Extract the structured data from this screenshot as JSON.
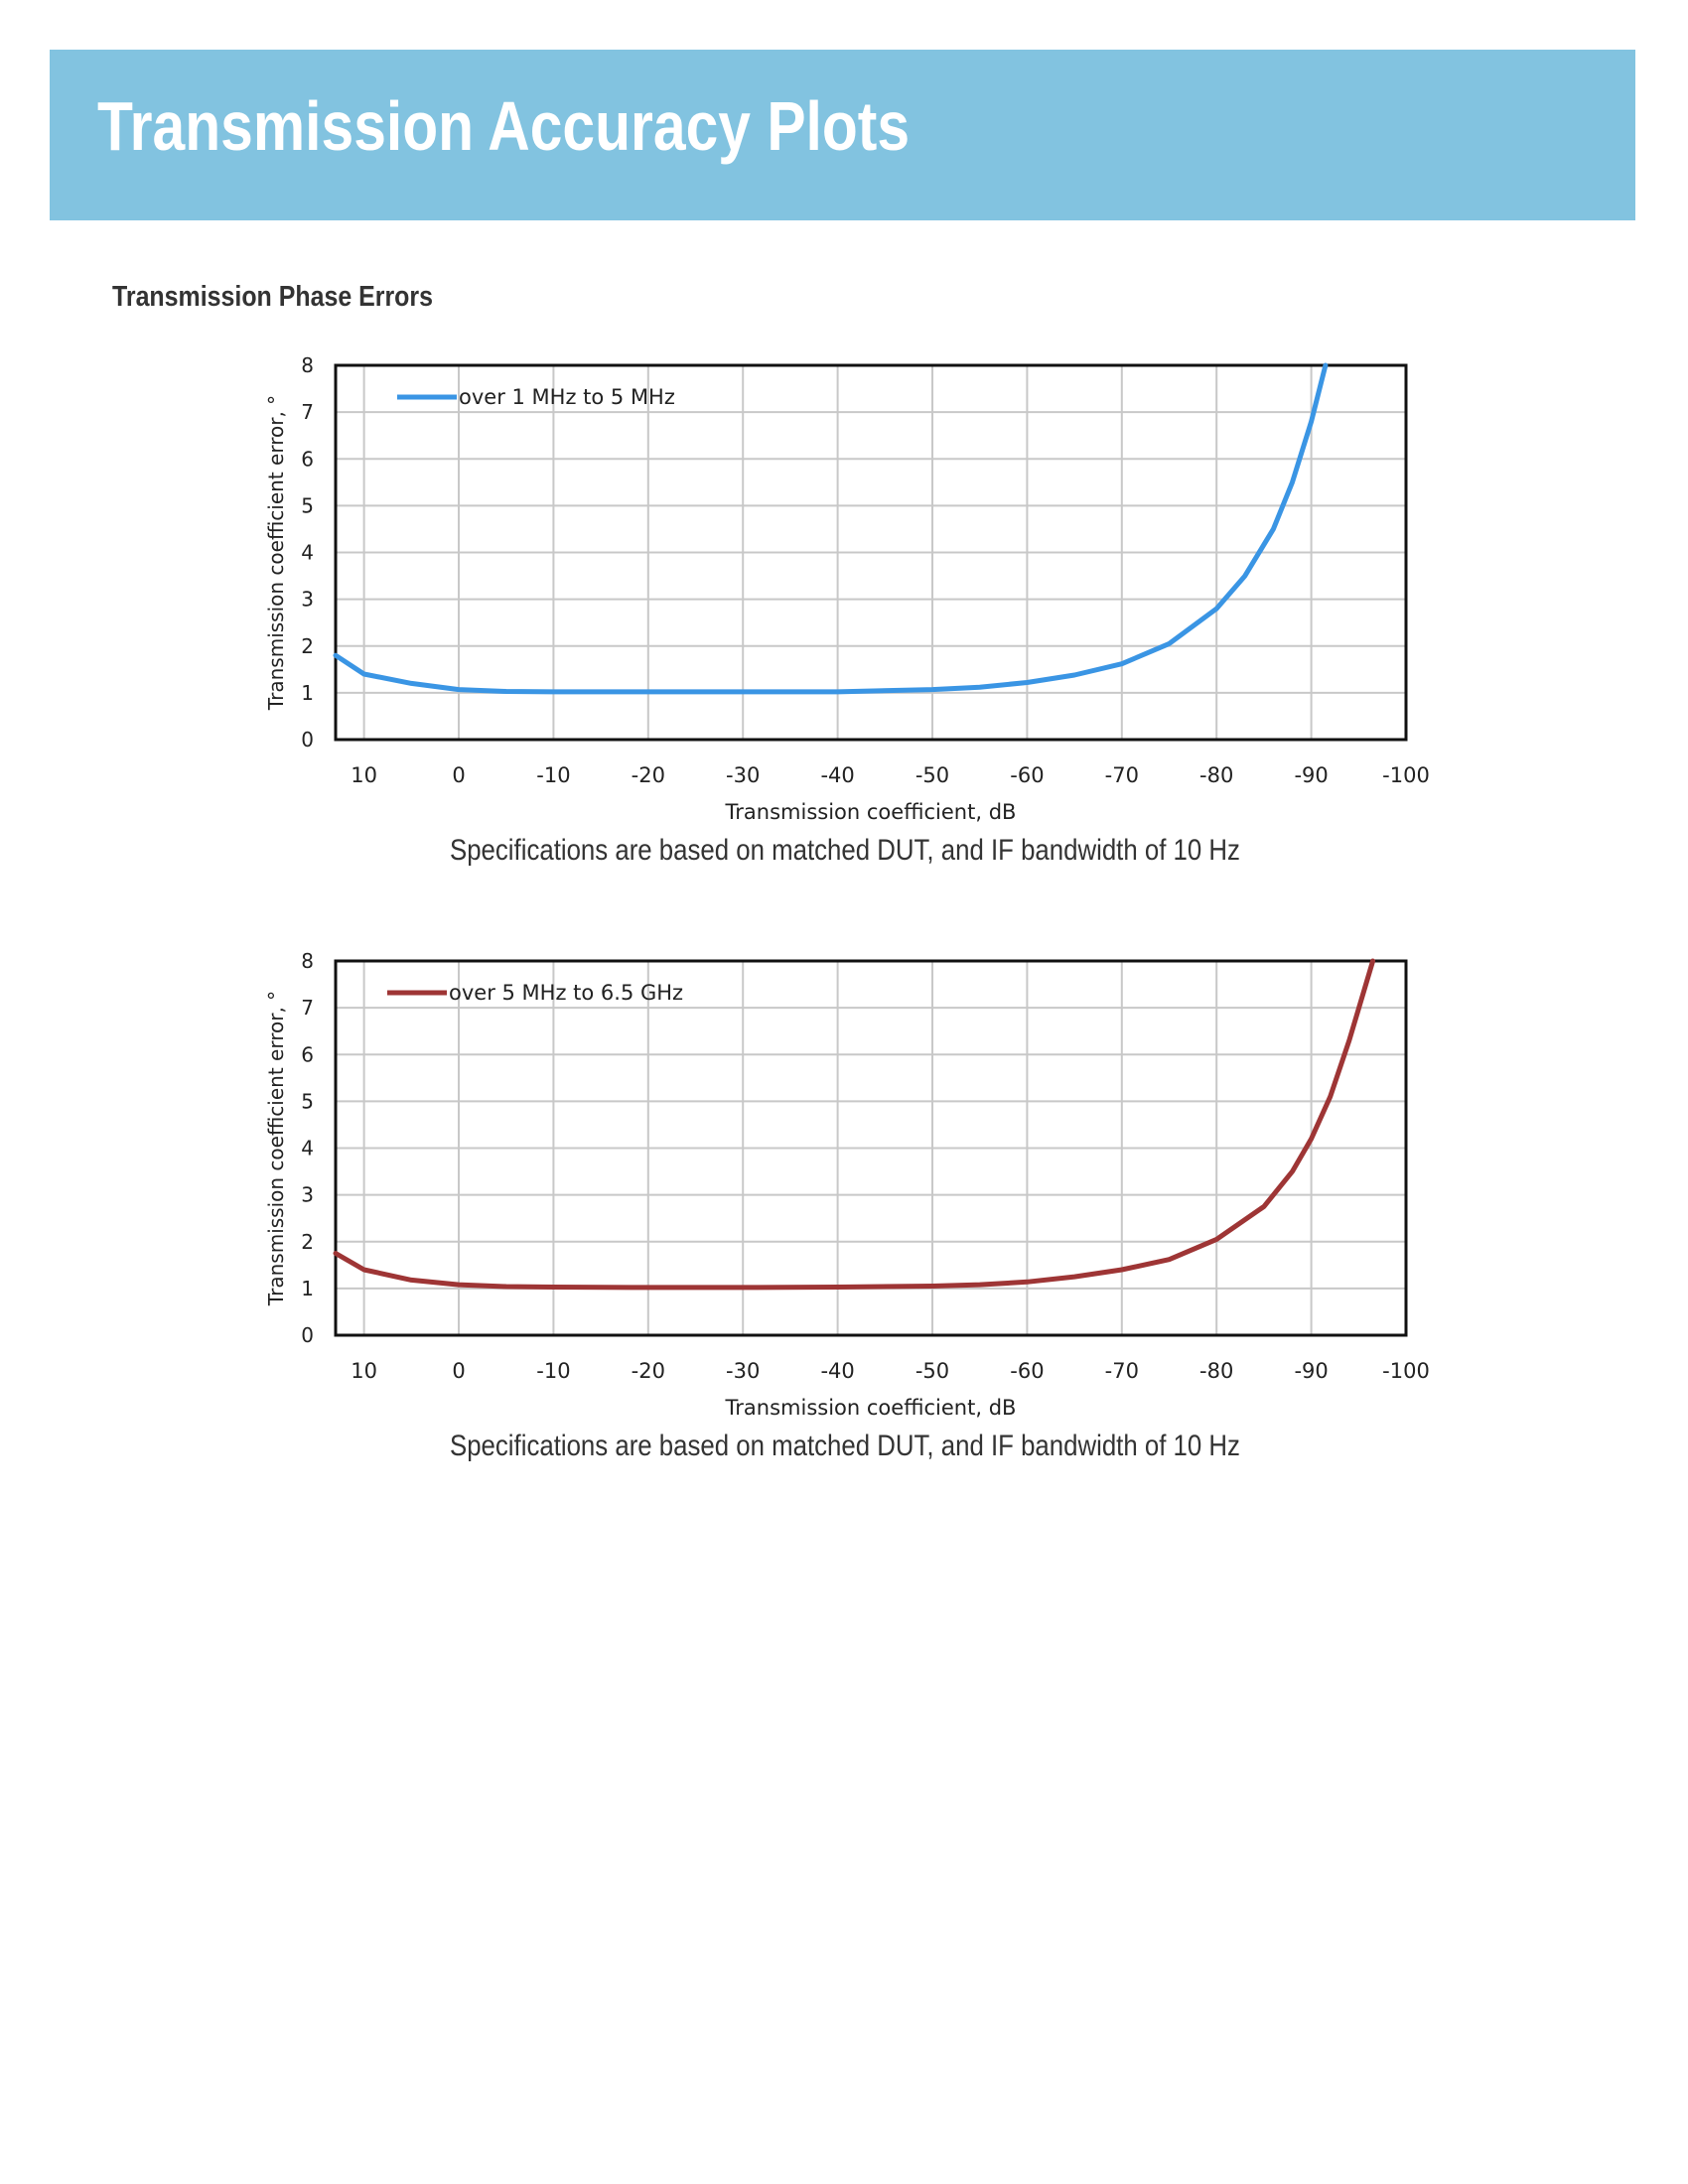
{
  "header": {
    "title": "Transmission Accuracy Plots",
    "background_color": "#82c3e0"
  },
  "section_title": "Transmission Phase Errors",
  "chart_data": [
    {
      "type": "line",
      "xlabel": "Transmission coefficient, dB",
      "ylabel": "Transmission coefficient error, °",
      "xlim": [
        13,
        -100
      ],
      "ylim": [
        0,
        8
      ],
      "x_ticks": [
        "10",
        "0",
        "-10",
        "-20",
        "-30",
        "-40",
        "-50",
        "-60",
        "-70",
        "-80",
        "-90",
        "-100"
      ],
      "y_ticks": [
        "0",
        "1",
        "2",
        "3",
        "4",
        "5",
        "6",
        "7",
        "8"
      ],
      "grid": true,
      "legend_position": "top-left",
      "series": [
        {
          "name": "over 1 MHz to 5 MHz",
          "color": "#3a95e4",
          "x": [
            13,
            10,
            5,
            0,
            -5,
            -10,
            -20,
            -30,
            -40,
            -50,
            -55,
            -60,
            -65,
            -70,
            -75,
            -80,
            -83,
            -86,
            -88,
            -90,
            -91.5
          ],
          "y": [
            1.8,
            1.4,
            1.2,
            1.07,
            1.03,
            1.02,
            1.02,
            1.02,
            1.02,
            1.07,
            1.12,
            1.22,
            1.38,
            1.62,
            2.05,
            2.8,
            3.5,
            4.5,
            5.5,
            6.8,
            8.0
          ]
        }
      ],
      "caption": "Specifications are based on matched DUT, and IF bandwidth of 10 Hz"
    },
    {
      "type": "line",
      "xlabel": "Transmission coefficient, dB",
      "ylabel": "Transmission coefficient error, °",
      "xlim": [
        13,
        -100
      ],
      "ylim": [
        0,
        8
      ],
      "x_ticks": [
        "10",
        "0",
        "-10",
        "-20",
        "-30",
        "-40",
        "-50",
        "-60",
        "-70",
        "-80",
        "-90",
        "-100"
      ],
      "y_ticks": [
        "0",
        "1",
        "2",
        "3",
        "4",
        "5",
        "6",
        "7",
        "8"
      ],
      "grid": true,
      "legend_position": "top-left",
      "series": [
        {
          "name": "over 5 MHz to 6.5 GHz",
          "color": "#9e3535",
          "x": [
            13,
            10,
            5,
            0,
            -5,
            -10,
            -20,
            -30,
            -40,
            -50,
            -55,
            -60,
            -65,
            -70,
            -75,
            -80,
            -85,
            -88,
            -90,
            -92,
            -94,
            -96.5
          ],
          "y": [
            1.75,
            1.4,
            1.18,
            1.08,
            1.04,
            1.03,
            1.02,
            1.02,
            1.03,
            1.05,
            1.08,
            1.14,
            1.25,
            1.4,
            1.62,
            2.05,
            2.75,
            3.5,
            4.2,
            5.1,
            6.3,
            8.0
          ]
        }
      ],
      "caption": "Specifications are based on matched DUT, and IF bandwidth of 10 Hz"
    }
  ]
}
